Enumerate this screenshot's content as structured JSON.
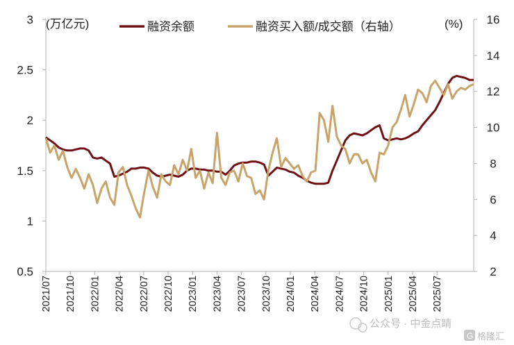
{
  "chart_data": {
    "type": "line",
    "title": "",
    "left_axis": {
      "label": "(万亿元)",
      "ylim": [
        0.5,
        3
      ],
      "ticks": [
        "0.5",
        "1",
        "1.5",
        "2",
        "2.5",
        "3"
      ]
    },
    "right_axis": {
      "label": "(%)",
      "ylim": [
        2,
        16
      ],
      "ticks": [
        "2",
        "4",
        "6",
        "8",
        "10",
        "12",
        "14",
        "16"
      ]
    },
    "x_tick_labels": [
      "2021/07",
      "2021/10",
      "2022/01",
      "2022/04",
      "2022/07",
      "2022/10",
      "2023/01",
      "2023/04",
      "2023/07",
      "2023/10",
      "2024/01",
      "2024/04",
      "2024/07",
      "2024/10",
      "2025/01",
      "2025/04",
      "2025/07"
    ],
    "series": [
      {
        "name": "融资余额",
        "axis": "left",
        "color": "#6e1014",
        "x": [
          0,
          0.5,
          1,
          1.5,
          2,
          2.5,
          3,
          3.5,
          4,
          4.5,
          5,
          5.5,
          6,
          6.5,
          7,
          7.5,
          8,
          8.5,
          9,
          9.5,
          10,
          10.5,
          11,
          11.5,
          12,
          12.5,
          13,
          13.5,
          14,
          14.5,
          15,
          15.5,
          16,
          16.5,
          17,
          17.5,
          18,
          18.5,
          19,
          19.5,
          20,
          20.5,
          21,
          21.5,
          22,
          22.5,
          23,
          23.5,
          24,
          24.5,
          25,
          25.5,
          26,
          26.5,
          27,
          27.5,
          28,
          28.5,
          29,
          29.5,
          30,
          30.5,
          31,
          31.5,
          32,
          32.5,
          33,
          33.5,
          34,
          34.5,
          35,
          35.5,
          36,
          36.5,
          37,
          37.5,
          38,
          38.5,
          39,
          39.5,
          40,
          40.5,
          41,
          41.5,
          42,
          42.5,
          43,
          43.5,
          44,
          44.5,
          45,
          45.5,
          46,
          46.5,
          47,
          47.5,
          48,
          48.5,
          49,
          49.5,
          50
        ],
        "values": [
          1.83,
          1.8,
          1.77,
          1.73,
          1.71,
          1.7,
          1.7,
          1.71,
          1.72,
          1.72,
          1.7,
          1.63,
          1.62,
          1.63,
          1.6,
          1.57,
          1.44,
          1.45,
          1.47,
          1.49,
          1.52,
          1.52,
          1.53,
          1.53,
          1.52,
          1.48,
          1.45,
          1.44,
          1.45,
          1.46,
          1.45,
          1.44,
          1.46,
          1.5,
          1.52,
          1.52,
          1.51,
          1.51,
          1.5,
          1.5,
          1.49,
          1.49,
          1.46,
          1.5,
          1.55,
          1.57,
          1.58,
          1.58,
          1.59,
          1.59,
          1.58,
          1.56,
          1.45,
          1.49,
          1.53,
          1.52,
          1.51,
          1.49,
          1.48,
          1.45,
          1.43,
          1.4,
          1.38,
          1.37,
          1.37,
          1.37,
          1.38,
          1.5,
          1.6,
          1.7,
          1.8,
          1.85,
          1.87,
          1.86,
          1.85,
          1.87,
          1.9,
          1.93,
          1.95,
          1.82,
          1.8,
          1.81,
          1.82,
          1.81,
          1.82,
          1.84,
          1.87,
          1.89,
          1.95,
          2.0,
          2.05,
          2.1,
          2.18,
          2.27,
          2.36,
          2.42,
          2.44,
          2.43,
          2.42,
          2.4,
          2.4
        ]
      },
      {
        "name": "融资买入额/成交额（右轴）",
        "axis": "right",
        "color": "#c8a46a",
        "x": [
          0,
          0.5,
          1,
          1.5,
          2,
          2.5,
          3,
          3.5,
          4,
          4.5,
          5,
          5.5,
          6,
          6.5,
          7,
          7.5,
          8,
          8.5,
          9,
          9.5,
          10,
          10.5,
          11,
          11.5,
          12,
          12.5,
          13,
          13.5,
          14,
          14.5,
          15,
          15.5,
          16,
          16.5,
          17,
          17.5,
          18,
          18.5,
          19,
          19.5,
          20,
          20.5,
          21,
          21.5,
          22,
          22.5,
          23,
          23.5,
          24,
          24.5,
          25,
          25.5,
          26,
          26.5,
          27,
          27.5,
          28,
          28.5,
          29,
          29.5,
          30,
          30.5,
          31,
          31.5,
          32,
          32.5,
          33,
          33.5,
          34,
          34.5,
          35,
          35.5,
          36,
          36.5,
          37,
          37.5,
          38,
          38.5,
          39,
          39.5,
          40,
          40.5,
          41,
          41.5,
          42,
          42.5,
          43,
          43.5,
          44,
          44.5,
          45,
          45.5,
          46,
          46.5,
          47,
          47.5,
          48,
          48.5,
          49,
          49.5,
          50
        ],
        "values": [
          9.4,
          8.6,
          9.0,
          8.2,
          8.7,
          7.8,
          7.2,
          7.7,
          7.2,
          6.6,
          7.4,
          6.8,
          5.8,
          6.6,
          7.0,
          6.1,
          5.7,
          7.5,
          7.8,
          6.8,
          6.2,
          5.5,
          5.0,
          6.4,
          7.6,
          6.7,
          6.1,
          7.4,
          7.0,
          6.8,
          7.9,
          7.4,
          8.2,
          7.6,
          8.8,
          7.2,
          7.6,
          6.6,
          7.5,
          6.9,
          9.7,
          7.2,
          6.8,
          7.5,
          7.6,
          7.0,
          8.0,
          7.3,
          7.2,
          6.3,
          6.5,
          6.0,
          7.6,
          8.6,
          9.4,
          7.8,
          8.3,
          8.0,
          7.7,
          7.9,
          7.3,
          7.0,
          7.5,
          7.6,
          10.8,
          10.4,
          9.2,
          11.2,
          9.5,
          9.0,
          8.8,
          8.0,
          8.5,
          8.5,
          8.0,
          8.2,
          7.5,
          7.0,
          8.6,
          8.5,
          9.0,
          10.0,
          10.3,
          11.0,
          11.8,
          10.6,
          11.3,
          12.1,
          11.9,
          11.4,
          12.3,
          12.6,
          12.2,
          11.8,
          12.4,
          11.6,
          12.0,
          12.2,
          12.1,
          12.3,
          12.4
        ]
      }
    ],
    "legend": {
      "position": "top",
      "entries": [
        "融资余额",
        "融资买入额/成交额（右轴）"
      ]
    },
    "grid": false
  },
  "watermark": {
    "text": "公众号 · 中金点睛",
    "logo": "格隆汇",
    "logo_glyph": "G"
  }
}
